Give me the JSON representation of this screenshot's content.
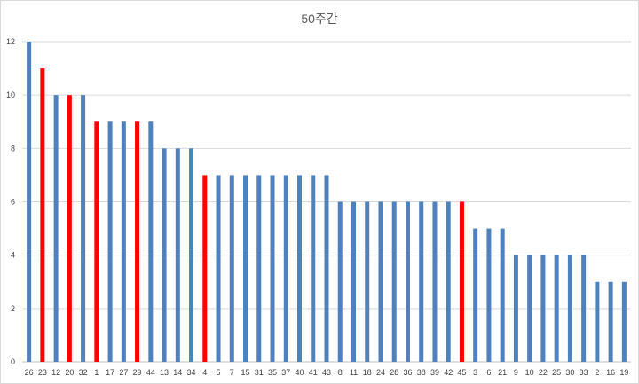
{
  "chart_data": {
    "type": "bar",
    "title": "50주간",
    "xlabel": "",
    "ylabel": "",
    "ylim": [
      0,
      12
    ],
    "yticks": [
      0,
      2,
      4,
      6,
      8,
      10,
      12
    ],
    "grid": true,
    "legend": "none",
    "colors": {
      "default": "#4f81bd",
      "highlight": "#ff0000"
    },
    "categories": [
      "26",
      "23",
      "12",
      "20",
      "32",
      "1",
      "17",
      "27",
      "29",
      "44",
      "13",
      "14",
      "34",
      "4",
      "5",
      "7",
      "15",
      "31",
      "35",
      "37",
      "40",
      "41",
      "43",
      "8",
      "11",
      "18",
      "24",
      "28",
      "36",
      "38",
      "39",
      "42",
      "45",
      "3",
      "6",
      "21",
      "9",
      "10",
      "22",
      "25",
      "30",
      "33",
      "2",
      "16",
      "19"
    ],
    "values": [
      12,
      11,
      10,
      10,
      10,
      9,
      9,
      9,
      9,
      9,
      8,
      8,
      8,
      7,
      7,
      7,
      7,
      7,
      7,
      7,
      7,
      7,
      7,
      6,
      6,
      6,
      6,
      6,
      6,
      6,
      6,
      6,
      6,
      5,
      5,
      5,
      4,
      4,
      4,
      4,
      4,
      4,
      3,
      3,
      3
    ],
    "highlighted": [
      "23",
      "20",
      "1",
      "29",
      "4",
      "45"
    ]
  }
}
